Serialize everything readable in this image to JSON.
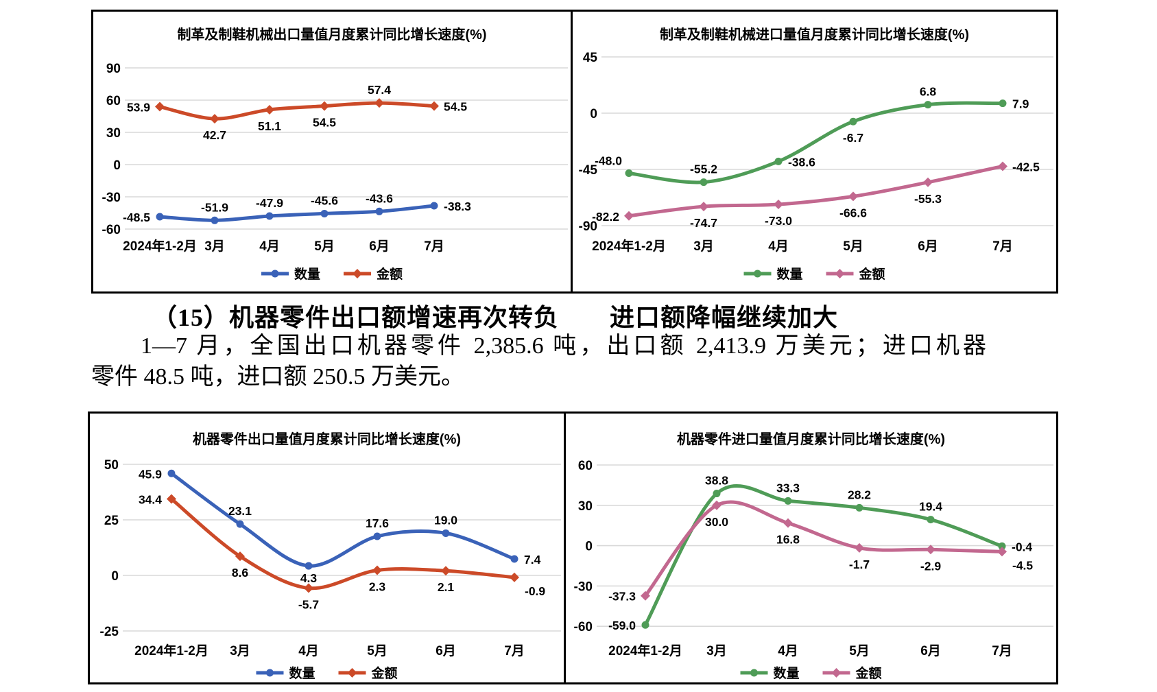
{
  "section": {
    "heading": "（15）机器零件出口额增速再次转负　　进口额降幅继续加大",
    "paragraph_line1": "1—7 月，全国出口机器零件 2,385.6 吨，出口额 2,413.9 万美元；进口机器",
    "paragraph_line2": "零件 48.5 吨，进口额 250.5 万美元。"
  },
  "colors": {
    "quantity_blue": "#3A62B8",
    "value_red": "#CC4A28",
    "quantity_green": "#4F9C57",
    "value_pink": "#C2688F",
    "gridline": "#D9D9D9",
    "text": "#000000",
    "border": "#000000"
  },
  "chart_data": [
    {
      "type": "line",
      "title": "制革及制鞋机械出口量值月度累计同比增长速度(%)",
      "categories": [
        "2024年1-2月",
        "3月",
        "4月",
        "5月",
        "6月",
        "7月"
      ],
      "y_ticks": [
        90,
        60,
        30,
        0,
        -30,
        -60
      ],
      "ylim": [
        -60,
        90
      ],
      "grid": true,
      "legend_position": "bottom",
      "series": [
        {
          "name": "数量",
          "color": "#3A62B8",
          "marker": "circle",
          "values": [
            -48.5,
            -51.9,
            -47.9,
            -45.6,
            -43.6,
            -38.3
          ],
          "label_pos": [
            "left",
            "above",
            "above",
            "above",
            "above",
            "right"
          ]
        },
        {
          "name": "金额",
          "color": "#CC4A28",
          "marker": "diamond",
          "values": [
            53.9,
            42.7,
            51.1,
            54.5,
            57.4,
            54.5
          ],
          "label_pos": [
            "left",
            "below",
            "below",
            "below",
            "above",
            "right"
          ]
        }
      ]
    },
    {
      "type": "line",
      "title": "制革及制鞋机械进口量值月度累计同比增长速度(%)",
      "categories": [
        "2024年1-2月",
        "3月",
        "4月",
        "5月",
        "6月",
        "7月"
      ],
      "y_ticks": [
        45,
        0,
        -45,
        -90
      ],
      "ylim": [
        -90,
        45
      ],
      "grid": true,
      "legend_position": "bottom",
      "series": [
        {
          "name": "数量",
          "color": "#4F9C57",
          "marker": "circle",
          "values": [
            -48.0,
            -55.2,
            -38.6,
            -6.7,
            6.8,
            7.9
          ],
          "label_pos": [
            "above-left",
            "above",
            "right",
            "below",
            "above",
            "right"
          ]
        },
        {
          "name": "金额",
          "color": "#C2688F",
          "marker": "diamond",
          "values": [
            -82.2,
            -74.7,
            -73.0,
            -66.6,
            -55.3,
            -42.5
          ],
          "label_pos": [
            "left",
            "below",
            "below",
            "below",
            "below",
            "right"
          ]
        }
      ]
    },
    {
      "type": "line",
      "title": "机器零件出口量值月度累计同比增长速度(%)",
      "categories": [
        "2024年1-2月",
        "3月",
        "4月",
        "5月",
        "6月",
        "7月"
      ],
      "y_ticks": [
        50,
        25,
        0,
        -25
      ],
      "ylim": [
        -25,
        50
      ],
      "grid": true,
      "legend_position": "bottom",
      "series": [
        {
          "name": "数量",
          "color": "#3A62B8",
          "marker": "circle",
          "values": [
            45.9,
            23.1,
            4.3,
            17.6,
            19.0,
            7.4
          ],
          "label_pos": [
            "left",
            "above",
            "below-near",
            "above",
            "above",
            "right"
          ]
        },
        {
          "name": "金额",
          "color": "#CC4A28",
          "marker": "diamond",
          "values": [
            34.4,
            8.6,
            -5.7,
            2.3,
            2.1,
            -0.9
          ],
          "label_pos": [
            "left",
            "below",
            "below",
            "below",
            "below",
            "below-right"
          ]
        }
      ]
    },
    {
      "type": "line",
      "title": "机器零件进口量值月度累计同比增长速度(%)",
      "categories": [
        "2024年1-2月",
        "3月",
        "4月",
        "5月",
        "6月",
        "7月"
      ],
      "y_ticks": [
        60,
        30,
        0,
        -30,
        -60
      ],
      "ylim": [
        -60,
        60
      ],
      "grid": true,
      "legend_position": "bottom",
      "series": [
        {
          "name": "数量",
          "color": "#4F9C57",
          "marker": "circle",
          "values": [
            -59.0,
            38.8,
            33.3,
            28.2,
            19.4,
            -0.4
          ],
          "label_pos": [
            "left",
            "above",
            "above",
            "above",
            "above",
            "right"
          ]
        },
        {
          "name": "金额",
          "color": "#C2688F",
          "marker": "diamond",
          "values": [
            -37.3,
            30.0,
            16.8,
            -1.7,
            -2.9,
            -4.5
          ],
          "label_pos": [
            "left",
            "below",
            "below",
            "below",
            "below",
            "below-right"
          ]
        }
      ]
    }
  ]
}
